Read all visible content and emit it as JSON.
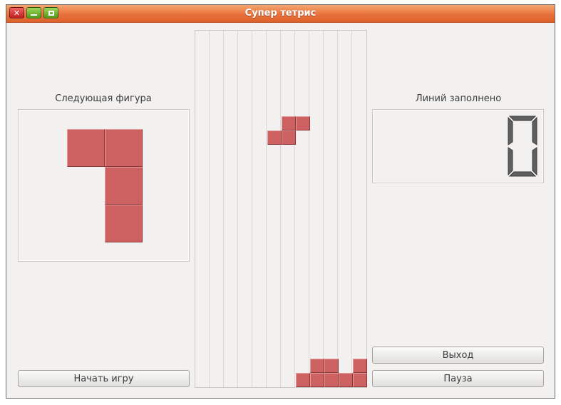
{
  "window": {
    "title": "Супер тетрис"
  },
  "next_piece": {
    "label": "Следующая фигура"
  },
  "lines": {
    "label": "Линий заполнено",
    "value": 0
  },
  "buttons": {
    "start": "Начать игру",
    "exit": "Выход",
    "pause": "Пауза"
  },
  "colors": {
    "block": "#cd6060",
    "titlebar": "#e8713c"
  },
  "icons": {
    "close": "close-icon",
    "minimize": "minimize-icon",
    "maximize": "maximize-icon"
  }
}
